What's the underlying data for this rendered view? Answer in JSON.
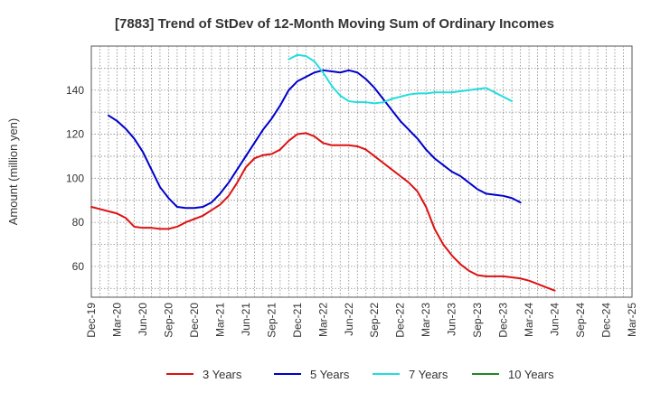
{
  "chart_data": {
    "type": "line",
    "title": "[7883]  Trend of StDev of 12-Month Moving Sum of Ordinary Incomes",
    "xlabel": "",
    "ylabel": "Amount (million yen)",
    "ylim": [
      46,
      160
    ],
    "y_ticks": [
      60,
      80,
      100,
      120,
      140
    ],
    "x_ticks": [
      "Dec-19",
      "Mar-20",
      "Jun-20",
      "Sep-20",
      "Dec-20",
      "Mar-21",
      "Jun-21",
      "Sep-21",
      "Dec-21",
      "Mar-22",
      "Jun-22",
      "Sep-22",
      "Dec-22",
      "Mar-23",
      "Jun-23",
      "Sep-23",
      "Dec-23",
      "Mar-24",
      "Jun-24",
      "Sep-24",
      "Dec-24",
      "Mar-25"
    ],
    "grid": true,
    "legend_position": "bottom",
    "series": [
      {
        "name": "3 Years",
        "color": "#dd1111",
        "start_index": 0,
        "values": [
          87,
          86,
          85,
          84,
          82,
          78,
          77.5,
          77.5,
          77,
          77,
          78,
          80,
          81.5,
          83,
          85.5,
          88,
          92,
          98,
          105,
          109,
          110.5,
          111,
          113,
          117,
          120,
          120.5,
          119,
          116,
          115,
          115,
          115,
          114.5,
          113,
          110,
          107,
          104,
          101,
          98,
          94,
          87,
          77,
          70,
          65,
          61,
          58,
          56,
          55.5,
          55.5,
          55.5,
          55,
          54.5,
          53.5,
          52,
          50.5,
          49
        ]
      },
      {
        "name": "5 Years",
        "color": "#0000cc",
        "start_index": 2,
        "values": [
          128.5,
          126,
          122.5,
          118,
          112,
          104,
          96,
          91,
          87,
          86.5,
          86.5,
          87,
          89,
          93,
          98,
          104,
          110,
          116,
          122,
          127,
          133,
          140,
          144,
          146,
          148,
          149,
          148.5,
          148,
          149,
          148,
          145,
          141,
          136,
          131,
          126,
          122,
          118,
          113,
          109,
          106,
          103,
          101,
          98,
          95,
          93,
          92.5,
          92,
          91,
          89
        ]
      },
      {
        "name": "7 Years",
        "color": "#22dddd",
        "start_index": 23,
        "values": [
          154,
          156,
          155.5,
          153,
          148,
          142,
          137.5,
          135,
          134.5,
          134.5,
          134,
          134.5,
          136,
          137,
          138,
          138.5,
          138.5,
          139,
          139,
          139,
          139.5,
          140,
          140.5,
          141,
          139,
          137,
          135
        ]
      },
      {
        "name": "10 Years",
        "color": "#228822",
        "start_index": 0,
        "values": []
      }
    ]
  }
}
